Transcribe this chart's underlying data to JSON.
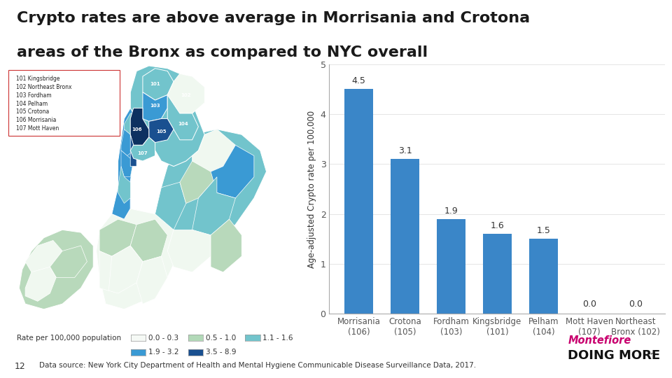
{
  "title_line1": "Crypto rates are above average in Morrisania and Crotona",
  "title_line2": "areas of the Bronx as compared to NYC overall",
  "title_fontsize": 16,
  "title_color": "#1a1a1a",
  "categories": [
    "Morrisania\n(106)",
    "Crotona\n(105)",
    "Fordham\n(103)",
    "Kingsbridge\n(101)",
    "Pelham\n(104)",
    "Mott Haven\n(107)",
    "Northeast\nBronx (102)"
  ],
  "values": [
    4.5,
    3.1,
    1.9,
    1.6,
    1.5,
    0.0,
    0.0
  ],
  "bar_color": "#3a86c8",
  "ylabel": "Age-adjusted Crypto rate per 100,000",
  "ylim": [
    0,
    5
  ],
  "yticks": [
    0,
    1,
    2,
    3,
    4,
    5
  ],
  "value_labels": [
    "4.5",
    "3.1",
    "1.9",
    "1.6",
    "1.5",
    "0.0",
    "0.0"
  ],
  "legend_items": [
    "101 Kingsbridge",
    "102 Northeast Bronx",
    "103 Fordham",
    "104 Pelham",
    "105 Crotona",
    "106 Morrisania",
    "107 Mott Haven"
  ],
  "rate_legend_row1": [
    {
      "label": "0.0 - 0.3",
      "color": "#f5f9f5"
    },
    {
      "label": "0.5 - 1.0",
      "color": "#b2d9b8"
    },
    {
      "label": "1.1 - 1.6",
      "color": "#72c4cc"
    }
  ],
  "rate_legend_row2": [
    {
      "label": "1.9 - 3.2",
      "color": "#3a9ad4"
    },
    {
      "label": "3.5 - 8.9",
      "color": "#1a5090"
    }
  ],
  "footer_text": "Data source: New York City Department of Health and Mental Hygiene Communicable Disease Surveillance Data, 2017.",
  "page_number": "12",
  "rate_label": "Rate per 100,000 population",
  "background_color": "#ffffff",
  "axis_color": "#aaaaaa",
  "label_fontsize": 8.5,
  "value_fontsize": 9,
  "ylabel_fontsize": 8.5
}
